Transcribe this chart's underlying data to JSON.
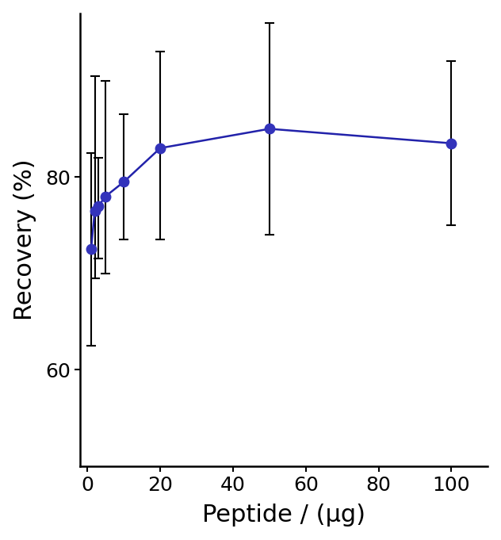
{
  "x": [
    1,
    2,
    3,
    5,
    10,
    20,
    50,
    100
  ],
  "y": [
    72.5,
    76.5,
    77.0,
    78.0,
    79.5,
    83.0,
    85.0,
    83.5
  ],
  "yerr_upper": [
    10.0,
    14.0,
    5.0,
    12.0,
    7.0,
    10.0,
    11.0,
    8.5
  ],
  "yerr_lower": [
    10.0,
    7.0,
    5.5,
    8.0,
    6.0,
    9.5,
    11.0,
    8.5
  ],
  "line_color": "#2222AA",
  "marker_color": "#3333BB",
  "errorbar_color": "#000000",
  "xlabel": "Peptide / (μg)",
  "ylabel": "Recovery (%)",
  "xlim": [
    -2,
    110
  ],
  "ylim": [
    50,
    97
  ],
  "yticks": [
    60,
    80
  ],
  "xticks": [
    0,
    20,
    40,
    60,
    80,
    100
  ],
  "marker_size": 9,
  "line_width": 1.8,
  "cap_size": 4,
  "xlabel_fontsize": 22,
  "ylabel_fontsize": 22,
  "tick_fontsize": 18
}
